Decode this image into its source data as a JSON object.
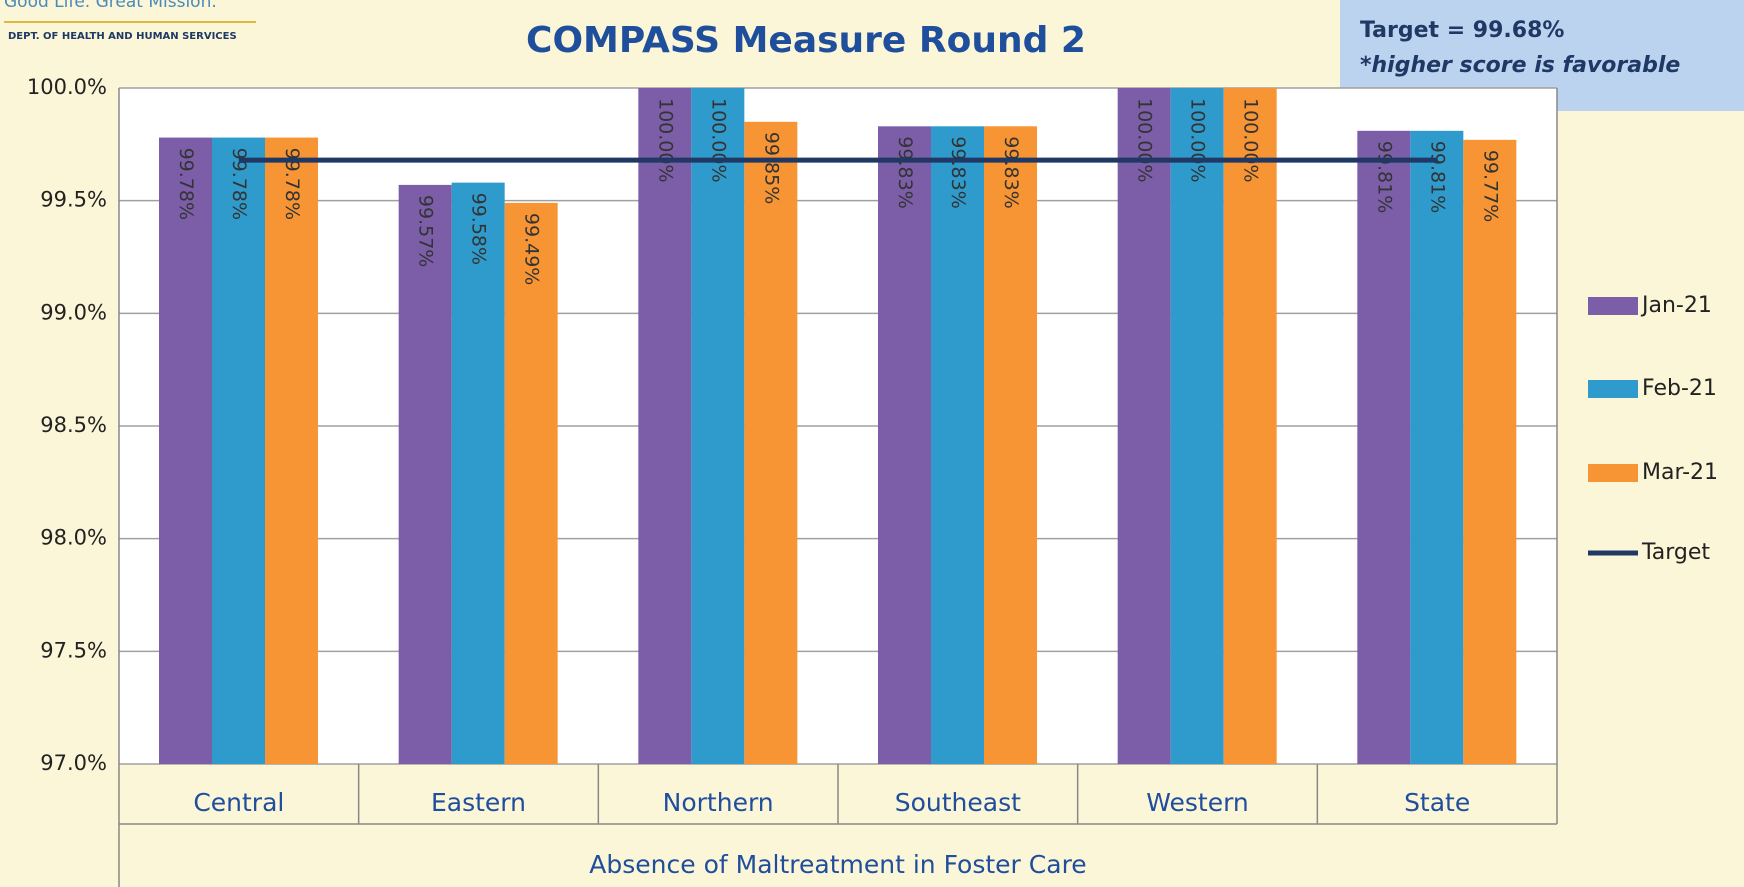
{
  "header": {
    "tagline": "Good Life. Great Mission.",
    "department": "DEPT. OF HEALTH AND HUMAN SERVICES"
  },
  "chart_data": {
    "type": "bar",
    "title": "COMPASS Measure Round 2",
    "annotation": {
      "line1": "Target = 99.68%",
      "line2": "*higher score is favorable"
    },
    "x_label": "Absence of Maltreatment in Foster Care",
    "categories": [
      "Central",
      "Eastern",
      "Northern",
      "Southeast",
      "Western",
      "State"
    ],
    "series": [
      {
        "name": "Jan-21",
        "color": "#7b5ea7",
        "values": [
          99.78,
          99.57,
          100,
          99.83,
          100,
          99.81
        ],
        "value_labels": [
          "99.78%",
          "99.57%",
          "100.00%",
          "99.83%",
          "100.00%",
          "99.81%"
        ]
      },
      {
        "name": "Feb-21",
        "color": "#2e9bcc",
        "values": [
          99.78,
          99.58,
          100,
          99.83,
          100,
          99.81
        ],
        "value_labels": [
          "99.78%",
          "99.58%",
          "100.00%",
          "99.83%",
          "100.00%",
          "99.81%"
        ]
      },
      {
        "name": "Mar-21",
        "color": "#f79433",
        "values": [
          99.78,
          99.49,
          99.85,
          99.83,
          100,
          99.77
        ],
        "value_labels": [
          "99.78%",
          "99.49%",
          "99.85%",
          "99.83%",
          "100.00%",
          "99.77%"
        ]
      }
    ],
    "target": {
      "name": "Target",
      "value": 99.68,
      "color": "#1f3864"
    },
    "ylim": [
      97,
      100
    ],
    "yticks": [
      {
        "value": 97,
        "label": "97.0%"
      },
      {
        "value": 97.5,
        "label": "97.5%"
      },
      {
        "value": 98,
        "label": "98.0%"
      },
      {
        "value": 98.5,
        "label": "98.5%"
      },
      {
        "value": 99,
        "label": "99.0%"
      },
      {
        "value": 99.5,
        "label": "99.5%"
      },
      {
        "value": 100,
        "label": "100.0%"
      }
    ],
    "grid": true,
    "legend": "right"
  }
}
